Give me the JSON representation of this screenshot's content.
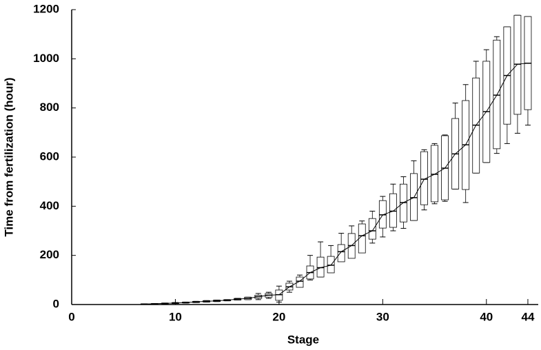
{
  "chart_data": {
    "type": "box",
    "xlabel": "Stage",
    "ylabel": "Time from fertilization (hour)",
    "x": [
      7,
      8,
      9,
      10,
      11,
      12,
      13,
      14,
      15,
      16,
      17,
      18,
      19,
      20,
      21,
      22,
      23,
      24,
      25,
      26,
      27,
      28,
      29,
      30,
      31,
      32,
      33,
      34,
      35,
      36,
      37,
      38,
      39,
      40,
      41,
      42,
      43,
      44
    ],
    "min": [
      1,
      2,
      3,
      4,
      6,
      8,
      10,
      12,
      15,
      18,
      20,
      20,
      25,
      10,
      50,
      75,
      100,
      112,
      130,
      175,
      195,
      220,
      250,
      275,
      300,
      310,
      342,
      385,
      410,
      420,
      470,
      415,
      535,
      578,
      615,
      655,
      697,
      730
    ],
    "q1": [
      1,
      2,
      3,
      4,
      6,
      8,
      10,
      12,
      15,
      18,
      20,
      25,
      30,
      17,
      59,
      70,
      104,
      112,
      129,
      174,
      188,
      210,
      266,
      311,
      314,
      336,
      342,
      406,
      418,
      426,
      470,
      468,
      535,
      578,
      634,
      734,
      774,
      793
    ],
    "median": [
      2,
      3,
      5,
      6,
      8,
      11,
      13,
      15,
      18,
      22,
      25,
      32,
      38,
      40,
      72,
      95,
      130,
      150,
      160,
      215,
      240,
      280,
      300,
      365,
      380,
      415,
      435,
      510,
      530,
      555,
      613,
      650,
      730,
      785,
      852,
      932,
      978,
      982
    ],
    "q3": [
      3,
      4,
      6,
      8,
      10,
      13,
      16,
      18,
      20,
      25,
      30,
      38,
      45,
      59,
      87,
      112,
      157,
      193,
      196,
      244,
      289,
      328,
      350,
      423,
      451,
      490,
      533,
      622,
      648,
      687,
      757,
      830,
      922,
      990,
      1076,
      1130,
      1177,
      1172
    ],
    "max": [
      3,
      4,
      6,
      8,
      10,
      13,
      16,
      18,
      20,
      25,
      30,
      45,
      50,
      75,
      95,
      120,
      200,
      255,
      240,
      290,
      320,
      340,
      380,
      440,
      490,
      520,
      585,
      630,
      655,
      690,
      820,
      895,
      990,
      1037,
      1090,
      1130,
      1177,
      1172
    ],
    "color": "#000000",
    "xlim": [
      0,
      45
    ],
    "xticks": [
      0,
      10,
      20,
      30,
      40,
      44
    ],
    "ylim": [
      0,
      1200
    ],
    "yticks": [
      0,
      200,
      400,
      600,
      800,
      1000,
      1200
    ]
  }
}
